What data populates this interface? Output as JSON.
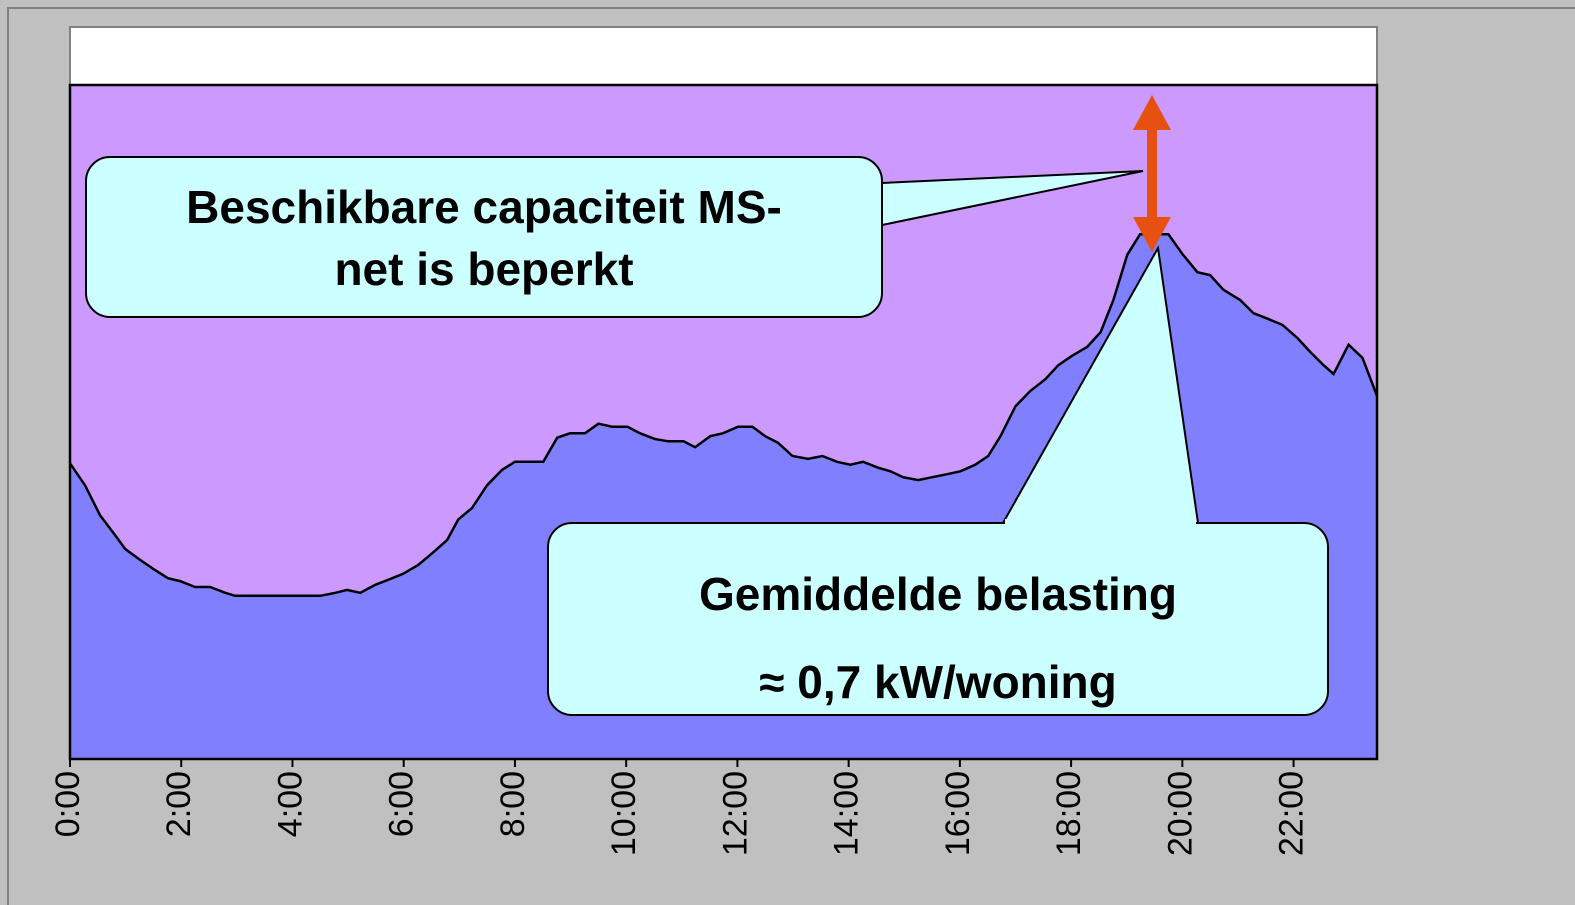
{
  "chart_data": {
    "type": "area",
    "x": [
      0,
      0.27,
      0.54,
      0.81,
      0.99,
      1.26,
      1.53,
      1.76,
      1.98,
      2.25,
      2.52,
      2.79,
      2.97,
      4.5,
      4.77,
      4.98,
      5.22,
      5.49,
      5.76,
      5.99,
      6.26,
      6.51,
      6.78,
      6.98,
      7.23,
      7.5,
      7.77,
      8.0,
      8.51,
      8.76,
      8.99,
      9.26,
      9.5,
      9.75,
      10.02,
      10.25,
      10.52,
      10.76,
      11.03,
      11.24,
      11.51,
      11.74,
      12.01,
      12.27,
      12.5,
      12.73,
      12.99,
      13.27,
      13.53,
      13.79,
      14.03,
      14.26,
      14.53,
      14.75,
      14.98,
      15.25,
      15.5,
      15.76,
      16.01,
      16.28,
      16.51,
      16.73,
      17.0,
      17.27,
      17.54,
      17.77,
      18.02,
      18.29,
      18.53,
      18.76,
      19.01,
      19.24,
      19.75,
      20.0,
      20.27,
      20.5,
      20.74,
      21.04,
      21.28,
      21.55,
      21.8,
      22.07,
      22.3,
      22.54,
      22.72,
      22.99,
      23.24,
      23.5
    ],
    "series": [
      {
        "color": "#8080ff",
        "values": [
          40.4,
          37.4,
          33.3,
          30.6,
          28.7,
          27.2,
          25.8,
          24.7,
          24.3,
          23.5,
          23.5,
          22.7,
          22.3,
          22.3,
          22.7,
          23.1,
          22.7,
          23.8,
          24.6,
          25.3,
          26.5,
          28.1,
          29.9,
          32.7,
          34.3,
          37.4,
          39.5,
          40.6,
          40.6,
          43.9,
          44.5,
          44.5,
          45.8,
          45.4,
          45.4,
          44.5,
          43.7,
          43.4,
          43.4,
          42.6,
          44.1,
          44.5,
          45.4,
          45.4,
          44.1,
          43.2,
          41.4,
          41.0,
          41.4,
          40.6,
          40.2,
          40.6,
          39.8,
          39.3,
          38.5,
          38.1,
          38.5,
          38.9,
          39.3,
          40.2,
          41.4,
          44.1,
          48.2,
          50.3,
          51.9,
          53.8,
          55.1,
          56.3,
          58.3,
          62.7,
          68.9,
          71.7,
          71.7,
          69.0,
          66.5,
          66.1,
          64.1,
          62.7,
          60.9,
          60.1,
          59.3,
          57.5,
          55.6,
          53.8,
          52.6,
          56.6,
          54.8,
          49.6
        ]
      }
    ],
    "xlim": [
      0,
      23.5
    ],
    "ylim": [
      0,
      100
    ],
    "xticks": [
      {
        "value": 0,
        "label": "0:00"
      },
      {
        "value": 2,
        "label": "2:00"
      },
      {
        "value": 4,
        "label": "4:00"
      },
      {
        "value": 6,
        "label": "6:00"
      },
      {
        "value": 8,
        "label": "8:00"
      },
      {
        "value": 10,
        "label": "10:00"
      },
      {
        "value": 12,
        "label": "12:00"
      },
      {
        "value": 14,
        "label": "14:00"
      },
      {
        "value": 16,
        "label": "16:00"
      },
      {
        "value": 18,
        "label": "18:00"
      },
      {
        "value": 20,
        "label": "20:00"
      },
      {
        "value": 22,
        "label": "22:00"
      }
    ],
    "background_color": "#cc99ff",
    "annotations": [
      {
        "lines": [
          "Beschikbare capaciteit MS-",
          "net is beperkt"
        ]
      },
      {
        "lines": [
          "Gemiddelde belasting",
          "≈ 0,7 kW/woning"
        ]
      }
    ]
  }
}
